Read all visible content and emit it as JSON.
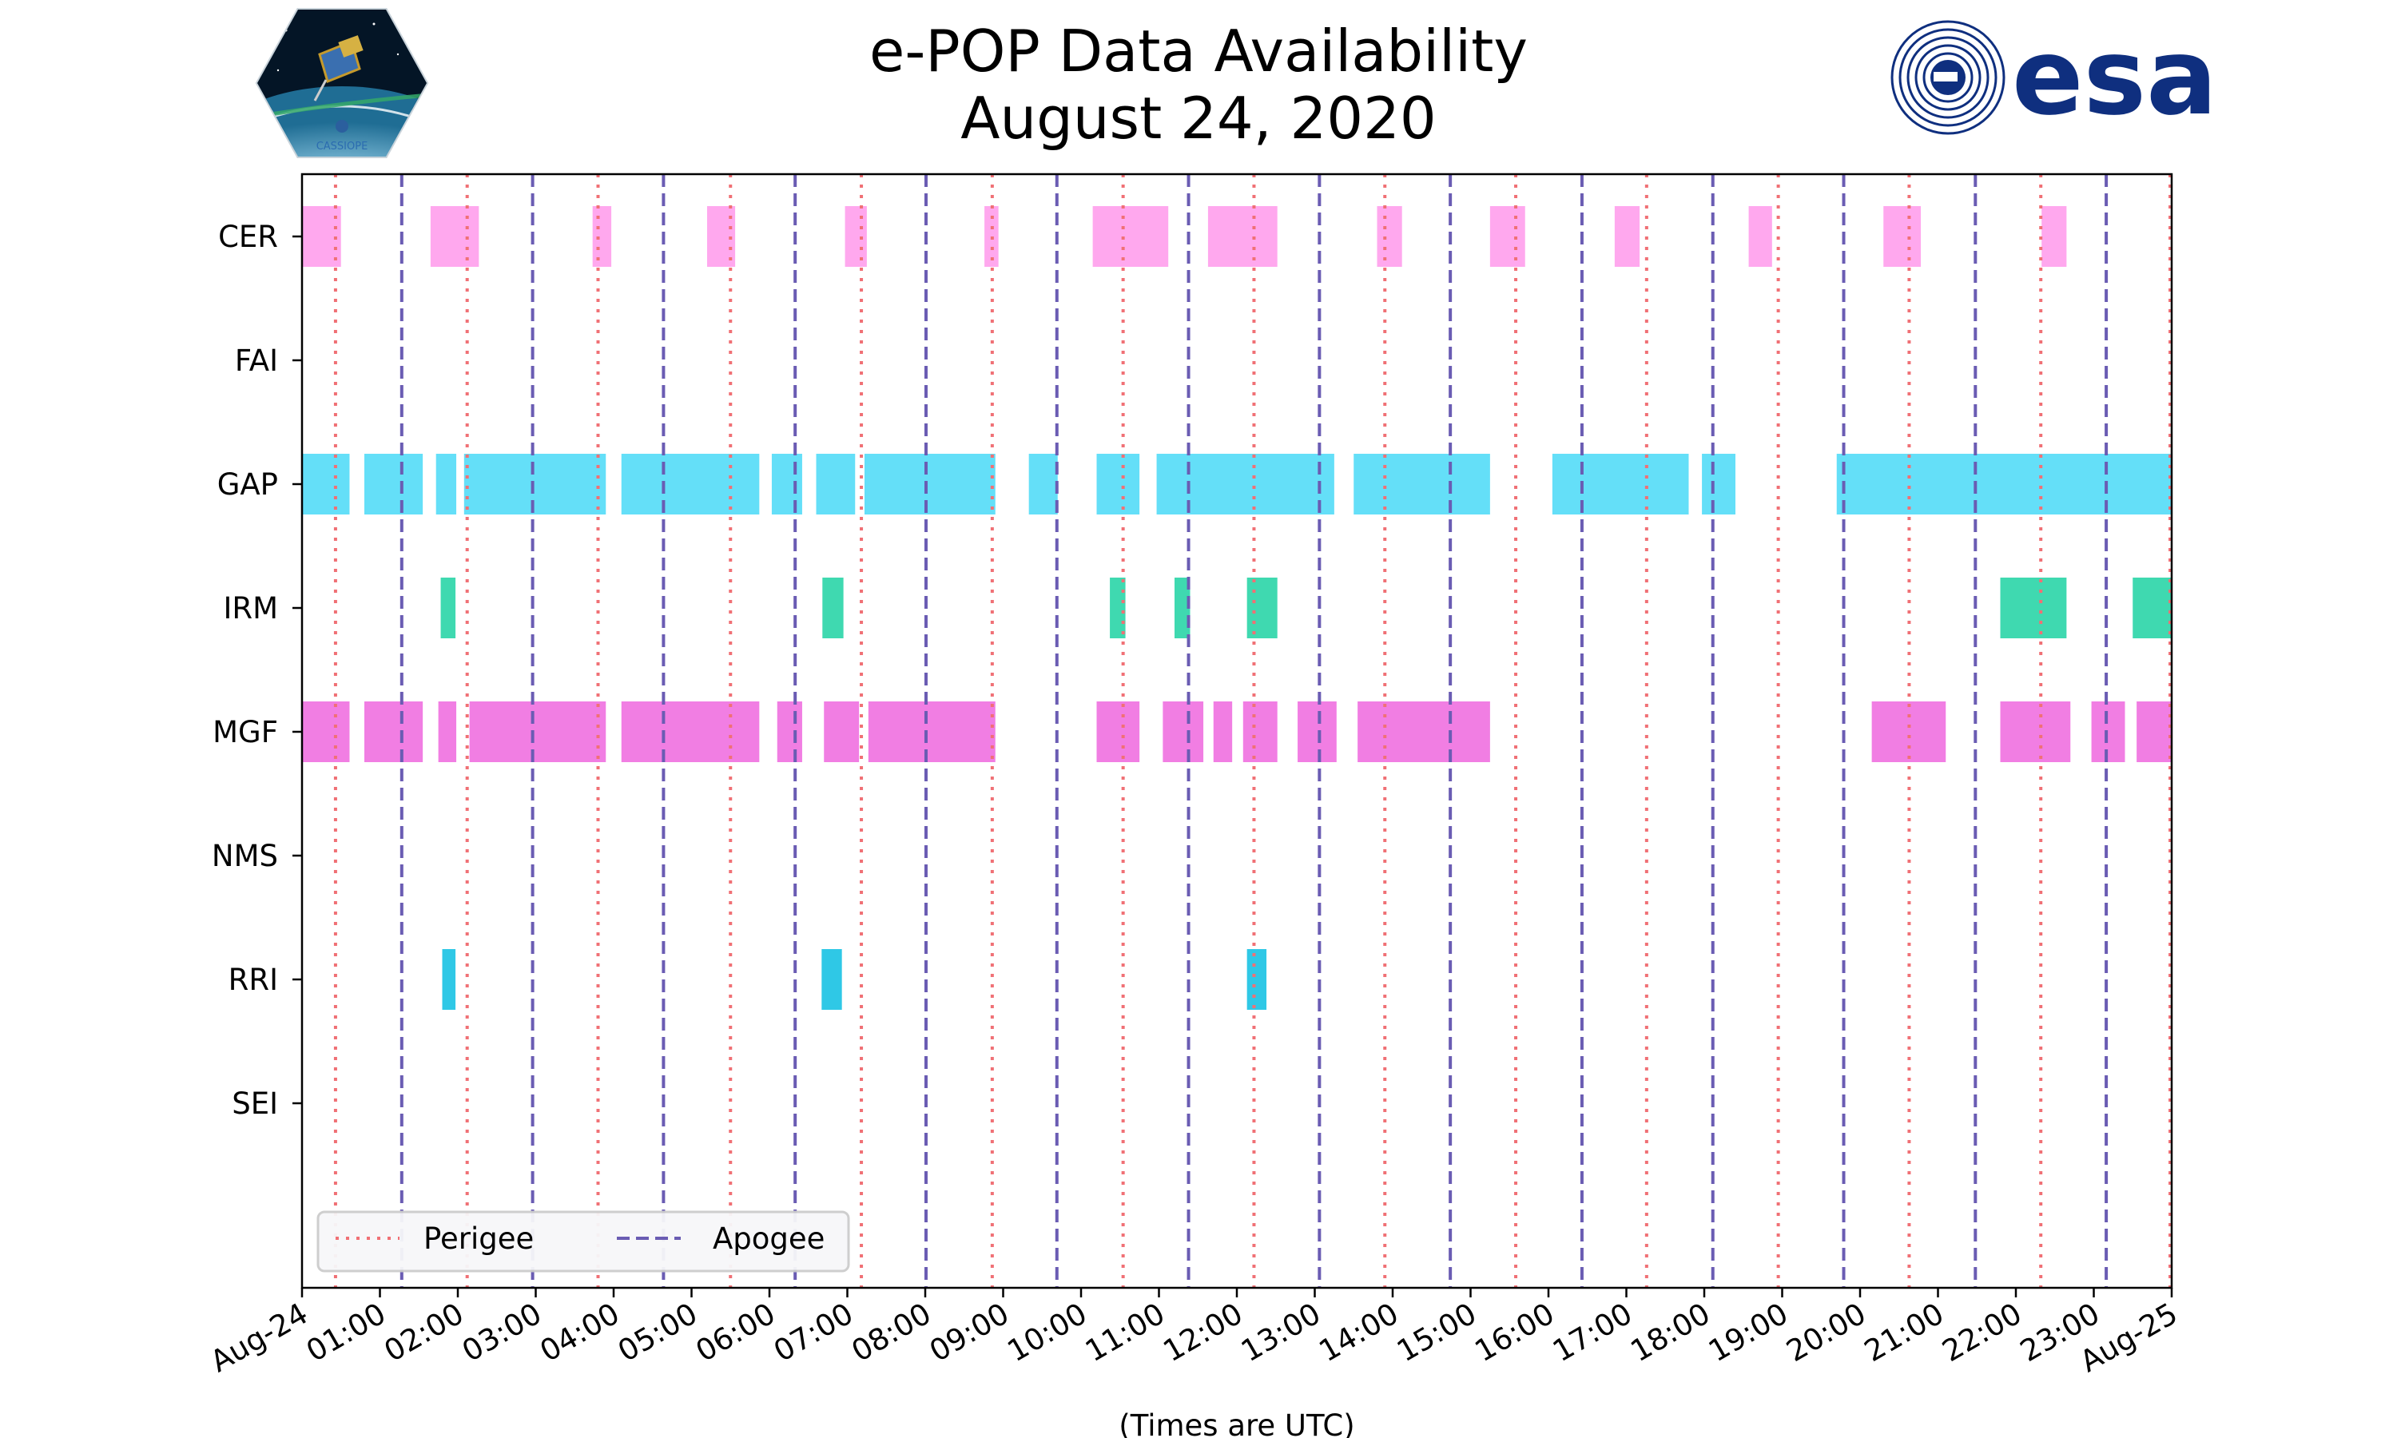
{
  "chart_data": {
    "type": "timeline",
    "title": "e-POP Data Availability",
    "subtitle": "August 24, 2020",
    "xlabel": "(Times are UTC)",
    "xlim_hours": [
      0,
      24
    ],
    "x_ticks": [
      {
        "hour": 0,
        "label": "Aug-24"
      },
      {
        "hour": 1,
        "label": "01:00"
      },
      {
        "hour": 2,
        "label": "02:00"
      },
      {
        "hour": 3,
        "label": "03:00"
      },
      {
        "hour": 4,
        "label": "04:00"
      },
      {
        "hour": 5,
        "label": "05:00"
      },
      {
        "hour": 6,
        "label": "06:00"
      },
      {
        "hour": 7,
        "label": "07:00"
      },
      {
        "hour": 8,
        "label": "08:00"
      },
      {
        "hour": 9,
        "label": "09:00"
      },
      {
        "hour": 10,
        "label": "10:00"
      },
      {
        "hour": 11,
        "label": "11:00"
      },
      {
        "hour": 12,
        "label": "12:00"
      },
      {
        "hour": 13,
        "label": "13:00"
      },
      {
        "hour": 14,
        "label": "14:00"
      },
      {
        "hour": 15,
        "label": "15:00"
      },
      {
        "hour": 16,
        "label": "16:00"
      },
      {
        "hour": 17,
        "label": "17:00"
      },
      {
        "hour": 18,
        "label": "18:00"
      },
      {
        "hour": 19,
        "label": "19:00"
      },
      {
        "hour": 20,
        "label": "20:00"
      },
      {
        "hour": 21,
        "label": "21:00"
      },
      {
        "hour": 22,
        "label": "22:00"
      },
      {
        "hour": 23,
        "label": "23:00"
      },
      {
        "hour": 24,
        "label": "Aug-25"
      }
    ],
    "instruments": [
      "CER",
      "FAI",
      "GAP",
      "IRM",
      "MGF",
      "NMS",
      "RRI",
      "SEI"
    ],
    "series": [
      {
        "name": "CER",
        "color": "#ffa8ee",
        "intervals": [
          [
            0.0,
            0.5
          ],
          [
            1.65,
            2.27
          ],
          [
            3.73,
            3.97
          ],
          [
            5.2,
            5.56
          ],
          [
            6.97,
            7.25
          ],
          [
            8.76,
            8.94
          ],
          [
            10.15,
            11.12
          ],
          [
            11.63,
            12.52
          ],
          [
            13.8,
            14.12
          ],
          [
            15.25,
            15.7
          ],
          [
            16.85,
            17.17
          ],
          [
            18.57,
            18.87
          ],
          [
            20.3,
            20.78
          ],
          [
            22.33,
            22.65
          ]
        ]
      },
      {
        "name": "FAI",
        "color": "#ffa8ee",
        "intervals": []
      },
      {
        "name": "GAP",
        "color": "#64dff8",
        "intervals": [
          [
            0.0,
            0.61
          ],
          [
            0.8,
            1.55
          ],
          [
            1.72,
            1.98
          ],
          [
            2.08,
            3.9
          ],
          [
            4.1,
            5.87
          ],
          [
            6.03,
            6.42
          ],
          [
            6.6,
            7.1
          ],
          [
            7.22,
            8.9
          ],
          [
            9.33,
            9.7
          ],
          [
            10.2,
            10.75
          ],
          [
            10.97,
            13.25
          ],
          [
            13.5,
            15.25
          ],
          [
            16.05,
            17.8
          ],
          [
            17.97,
            18.4
          ],
          [
            19.7,
            24.0
          ]
        ]
      },
      {
        "name": "IRM",
        "color": "#3fd9b0",
        "intervals": [
          [
            1.78,
            1.97
          ],
          [
            6.68,
            6.95
          ],
          [
            10.37,
            10.57
          ],
          [
            11.2,
            11.4
          ],
          [
            12.13,
            12.52
          ],
          [
            21.8,
            22.65
          ],
          [
            23.5,
            24.0
          ]
        ]
      },
      {
        "name": "MGF",
        "color": "#f17ee3",
        "intervals": [
          [
            0.0,
            0.61
          ],
          [
            0.8,
            1.55
          ],
          [
            1.75,
            1.98
          ],
          [
            2.15,
            3.9
          ],
          [
            4.1,
            5.87
          ],
          [
            6.1,
            6.42
          ],
          [
            6.7,
            7.15
          ],
          [
            7.27,
            8.9
          ],
          [
            10.2,
            10.75
          ],
          [
            11.05,
            11.57
          ],
          [
            11.7,
            11.94
          ],
          [
            12.08,
            12.52
          ],
          [
            12.78,
            13.28
          ],
          [
            13.55,
            15.25
          ],
          [
            20.15,
            21.1
          ],
          [
            21.8,
            22.7
          ],
          [
            22.97,
            23.4
          ],
          [
            23.55,
            24.0
          ]
        ]
      },
      {
        "name": "NMS",
        "color": "#f17ee3",
        "intervals": []
      },
      {
        "name": "RRI",
        "color": "#2fc8e6",
        "intervals": [
          [
            1.8,
            1.97
          ],
          [
            6.67,
            6.93
          ],
          [
            12.13,
            12.38
          ]
        ]
      },
      {
        "name": "SEI",
        "color": "#2fc8e6",
        "intervals": []
      }
    ],
    "perigee_hours": [
      0.43,
      2.12,
      3.8,
      5.5,
      7.18,
      8.86,
      10.54,
      12.22,
      13.9,
      15.58,
      17.26,
      18.95,
      20.63,
      22.32,
      23.98
    ],
    "apogee_hours": [
      1.28,
      2.96,
      4.64,
      6.33,
      8.01,
      9.69,
      11.38,
      13.06,
      14.74,
      16.43,
      18.11,
      19.79,
      21.48,
      23.16
    ],
    "legend": {
      "position": "lower-left",
      "entries": [
        {
          "label": "Perigee",
          "color": "#f07075",
          "style": "dotted"
        },
        {
          "label": "Apogee",
          "color": "#6a5cb3",
          "style": "dashed"
        }
      ]
    }
  },
  "logos": {
    "left_badge_text": "CASSIOPE",
    "right_brand_text": "esa"
  },
  "colors": {
    "perigee": "#f07075",
    "apogee": "#6a5cb3",
    "esa_blue": "#0f2f7f"
  }
}
